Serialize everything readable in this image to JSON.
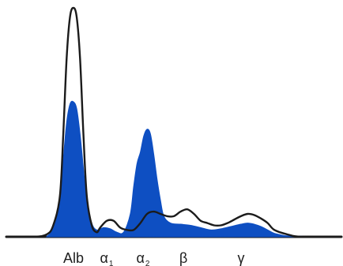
{
  "chart_data": {
    "type": "area",
    "title": "",
    "xlabel": "",
    "ylabel": "",
    "grid": false,
    "legend": "none",
    "xlim": [
      0,
      100
    ],
    "ylim": [
      0,
      100
    ],
    "fractions": [
      {
        "base": "Alb",
        "sub": ""
      },
      {
        "base": "α",
        "sub": "1"
      },
      {
        "base": "α",
        "sub": "2"
      },
      {
        "base": "β",
        "sub": ""
      },
      {
        "base": "γ",
        "sub": ""
      }
    ],
    "series": [
      {
        "style": "line",
        "color": "#1b1b1b",
        "points": [
          [
            0,
            0
          ],
          [
            8,
            0
          ],
          [
            12,
            1
          ],
          [
            14,
            5
          ],
          [
            16,
            18
          ],
          [
            17,
            45
          ],
          [
            18,
            78
          ],
          [
            19,
            96
          ],
          [
            20,
            100
          ],
          [
            21,
            96
          ],
          [
            22,
            78
          ],
          [
            23,
            45
          ],
          [
            24,
            18
          ],
          [
            25.5,
            5
          ],
          [
            27,
            2
          ],
          [
            28,
            4
          ],
          [
            30,
            7
          ],
          [
            32,
            7
          ],
          [
            34,
            4
          ],
          [
            36,
            3
          ],
          [
            38,
            3
          ],
          [
            40,
            6
          ],
          [
            42,
            10
          ],
          [
            44,
            11
          ],
          [
            46,
            10
          ],
          [
            48,
            9
          ],
          [
            50,
            9
          ],
          [
            52,
            11
          ],
          [
            54,
            12
          ],
          [
            56,
            10
          ],
          [
            58,
            7
          ],
          [
            60,
            6
          ],
          [
            62,
            5
          ],
          [
            64,
            5
          ],
          [
            66,
            6
          ],
          [
            68,
            7.5
          ],
          [
            70,
            9
          ],
          [
            72,
            10
          ],
          [
            74,
            9.5
          ],
          [
            76,
            8
          ],
          [
            78,
            6
          ],
          [
            80,
            3
          ],
          [
            84,
            1
          ],
          [
            88,
            0
          ],
          [
            100,
            0
          ]
        ]
      },
      {
        "style": "fill",
        "color": "#0e4fc2",
        "points": [
          [
            12,
            0
          ],
          [
            14,
            4
          ],
          [
            16,
            18
          ],
          [
            17,
            34
          ],
          [
            18,
            50
          ],
          [
            19,
            58
          ],
          [
            20,
            59
          ],
          [
            21,
            56
          ],
          [
            22,
            45
          ],
          [
            23,
            30
          ],
          [
            24,
            16
          ],
          [
            25.5,
            6
          ],
          [
            27,
            3
          ],
          [
            29,
            4
          ],
          [
            31,
            3.5
          ],
          [
            33,
            2
          ],
          [
            35,
            2
          ],
          [
            37,
            10
          ],
          [
            38,
            22
          ],
          [
            39,
            32
          ],
          [
            40,
            37
          ],
          [
            41,
            44
          ],
          [
            42,
            47
          ],
          [
            43,
            45
          ],
          [
            44,
            36
          ],
          [
            45,
            25
          ],
          [
            46,
            16
          ],
          [
            47,
            9
          ],
          [
            49,
            6
          ],
          [
            52,
            5.5
          ],
          [
            55,
            5
          ],
          [
            58,
            4
          ],
          [
            61,
            3
          ],
          [
            64,
            3.5
          ],
          [
            67,
            4.5
          ],
          [
            70,
            5.5
          ],
          [
            72,
            6
          ],
          [
            74,
            5.5
          ],
          [
            76,
            4.5
          ],
          [
            78,
            3
          ],
          [
            80,
            1.5
          ],
          [
            83,
            0.5
          ],
          [
            85,
            0
          ],
          [
            12,
            0
          ]
        ]
      }
    ],
    "colors": {
      "line": "#1b1b1b",
      "fill": "#0e4fc2",
      "baseline": "#1b1b1b"
    }
  }
}
